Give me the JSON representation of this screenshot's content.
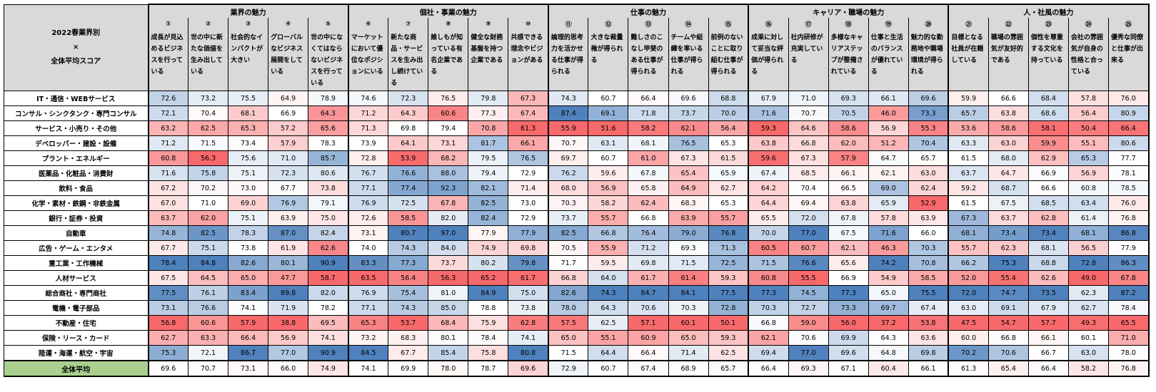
{
  "corner_title": "2022春業界別\n×\n全体平均スコア",
  "colors": {
    "header_bg": "#d9d9d9",
    "average_label_bg": "#a9d08e",
    "high_score": "#4f81bd",
    "mid_score": "#ffffff",
    "low_score": "#f8696b"
  },
  "chart_data": {
    "type": "heatmap",
    "groups": [
      {
        "name": "業界の魅力",
        "span": 5
      },
      {
        "name": "個社・事業の魅力",
        "span": 5
      },
      {
        "name": "仕事の魅力",
        "span": 5
      },
      {
        "name": "キャリア・職場の魅力",
        "span": 5
      },
      {
        "name": "人・社風の魅力",
        "span": 5
      }
    ],
    "column_numbers": [
      "①",
      "②",
      "③",
      "④",
      "⑤",
      "⑥",
      "⑦",
      "⑧",
      "⑨",
      "⑩",
      "⑪",
      "⑫",
      "⑬",
      "⑭",
      "⑮",
      "⑯",
      "⑰",
      "⑱",
      "⑲",
      "⑳",
      "㉑",
      "㉒",
      "㉓",
      "㉔",
      "㉕"
    ],
    "columns": [
      "成長が見込めるビジネスを行っている",
      "世の中に新たな価値を生み出している",
      "社会的なインパクトが大きい",
      "グローバルなビジネス展開をしている",
      "世の中になくてはならないビジネスを行っている",
      "マーケットにおいて優位なポジションにいる",
      "新たな商品・サービスを生み出し続けている",
      "誰しもが知っている有名企業である",
      "健全な財務基盤を持つ企業である",
      "共感できる理念やビジョンがある",
      "論理的思考力を活かせる仕事が得られる",
      "大きな裁量権が得られる",
      "難しさのこなし甲斐のある仕事が得られる",
      "チームや組織を率いる仕事が得られる",
      "前例のないことに取り組む仕事が得られる",
      "成果に対して妥当な評価が得られる",
      "社内研修が充実している",
      "多様なキャリアステップが整備されている",
      "仕事と生活のバランスが優れている",
      "魅力的な勤務地や職場環境が得られる",
      "目標となる社員が在籍している",
      "職場の雰囲気が友好的である",
      "個性を尊重する文化を持っている",
      "会社の雰囲気が自身の性格と合っている",
      "優秀な同僚と仕事が出来る"
    ],
    "rows": [
      {
        "label": "IT・通信・WEBサービス",
        "values": [
          72.6,
          73.2,
          75.5,
          64.9,
          78.9,
          74.6,
          72.3,
          76.5,
          79.8,
          67.3,
          74.3,
          60.7,
          66.4,
          69.6,
          68.8,
          67.9,
          71.0,
          69.3,
          66.1,
          69.6,
          59.9,
          66.6,
          68.4,
          57.8,
          76.0
        ]
      },
      {
        "label": "コンサル・シンクタンク・専門コンサル",
        "values": [
          72.1,
          70.4,
          68.1,
          66.9,
          64.3,
          71.2,
          64.3,
          60.6,
          77.3,
          67.4,
          87.4,
          69.1,
          71.8,
          73.7,
          70.0,
          71.6,
          70.7,
          70.5,
          46.0,
          73.3,
          65.7,
          63.8,
          68.6,
          56.4,
          80.9
        ]
      },
      {
        "label": "サービス・小売り・その他",
        "values": [
          63.2,
          62.5,
          65.3,
          57.2,
          65.6,
          71.3,
          69.8,
          79.4,
          70.8,
          61.3,
          55.9,
          51.6,
          58.2,
          62.1,
          56.4,
          59.3,
          64.6,
          58.6,
          56.9,
          55.3,
          53.6,
          58.6,
          58.1,
          50.4,
          66.4
        ]
      },
      {
        "label": "デベロッパー・建設・設備",
        "values": [
          71.2,
          71.5,
          73.4,
          57.9,
          78.3,
          73.9,
          64.1,
          73.1,
          81.7,
          66.1,
          70.7,
          63.1,
          68.1,
          76.5,
          65.3,
          63.8,
          66.8,
          62.0,
          51.2,
          70.4,
          63.3,
          63.0,
          59.9,
          55.1,
          80.6
        ]
      },
      {
        "label": "プラント・エネルギー",
        "values": [
          60.8,
          56.3,
          75.6,
          71.0,
          85.7,
          72.8,
          53.9,
          68.2,
          79.5,
          76.5,
          69.7,
          60.7,
          61.0,
          67.3,
          61.5,
          59.6,
          67.3,
          57.9,
          64.7,
          65.7,
          61.5,
          68.0,
          62.9,
          65.3,
          77.7
        ]
      },
      {
        "label": "医薬品・化粧品・消費財",
        "values": [
          71.6,
          75.8,
          75.1,
          72.3,
          80.6,
          76.7,
          76.6,
          88.0,
          79.4,
          72.9,
          76.2,
          59.6,
          67.8,
          65.4,
          65.9,
          67.4,
          68.5,
          66.1,
          62.1,
          63.0,
          63.7,
          64.7,
          66.9,
          56.9,
          78.1
        ]
      },
      {
        "label": "飲料・食品",
        "values": [
          67.2,
          70.2,
          73.0,
          67.7,
          73.8,
          77.1,
          77.4,
          92.3,
          82.1,
          71.4,
          68.0,
          56.9,
          65.8,
          64.9,
          62.7,
          64.2,
          70.4,
          66.5,
          69.0,
          62.4,
          59.2,
          68.7,
          66.6,
          60.8,
          78.5
        ]
      },
      {
        "label": "化学・素材・鉄鋼・非鉄金属",
        "values": [
          67.0,
          71.0,
          69.0,
          76.9,
          79.1,
          76.9,
          72.5,
          67.8,
          82.5,
          73.0,
          70.3,
          58.2,
          62.4,
          68.3,
          65.3,
          64.4,
          69.4,
          63.8,
          65.9,
          52.9,
          61.5,
          67.5,
          68.5,
          63.4,
          76.0
        ]
      },
      {
        "label": "銀行・証券・投資",
        "values": [
          63.7,
          62.0,
          75.1,
          63.9,
          75.0,
          72.6,
          58.5,
          82.0,
          82.4,
          72.9,
          73.7,
          55.7,
          66.8,
          63.9,
          55.7,
          65.5,
          72.0,
          67.8,
          57.8,
          63.9,
          67.3,
          63.7,
          62.8,
          61.4,
          76.8
        ]
      },
      {
        "label": "自動車",
        "values": [
          74.8,
          82.5,
          78.3,
          87.0,
          82.4,
          73.1,
          80.7,
          97.0,
          77.9,
          77.9,
          82.5,
          66.8,
          76.4,
          79.0,
          76.8,
          70.0,
          77.0,
          67.5,
          71.6,
          66.0,
          68.1,
          73.4,
          73.4,
          68.1,
          86.8
        ]
      },
      {
        "label": "広告・ゲーム・エンタメ",
        "values": [
          67.7,
          75.1,
          73.8,
          61.9,
          62.6,
          74.0,
          74.3,
          84.0,
          74.9,
          69.8,
          70.5,
          55.9,
          71.2,
          69.3,
          71.3,
          60.5,
          60.7,
          62.1,
          46.3,
          70.3,
          55.7,
          62.3,
          68.1,
          56.5,
          77.9
        ]
      },
      {
        "label": "重工業・工作機械",
        "values": [
          78.4,
          84.8,
          82.6,
          80.1,
          90.9,
          83.3,
          77.3,
          73.7,
          80.2,
          79.8,
          71.7,
          59.5,
          69.8,
          71.5,
          72.5,
          71.5,
          76.6,
          65.6,
          74.2,
          70.8,
          66.2,
          75.3,
          68.8,
          72.8,
          86.3
        ]
      },
      {
        "label": "人材サービス",
        "values": [
          67.5,
          64.5,
          65.0,
          47.7,
          58.7,
          63.5,
          56.4,
          56.3,
          65.2,
          61.7,
          66.8,
          64.0,
          61.7,
          61.4,
          59.3,
          60.8,
          55.5,
          66.9,
          54.9,
          58.5,
          52.0,
          55.4,
          62.6,
          49.0,
          67.8
        ]
      },
      {
        "label": "総合商社・専門商社",
        "values": [
          77.5,
          76.1,
          83.4,
          89.8,
          82.0,
          76.9,
          75.4,
          81.0,
          84.9,
          75.0,
          82.6,
          74.3,
          84.7,
          84.1,
          77.5,
          77.3,
          74.5,
          77.3,
          65.0,
          75.5,
          72.0,
          74.7,
          73.5,
          62.3,
          87.2
        ]
      },
      {
        "label": "電機・電子部品",
        "values": [
          73.1,
          76.6,
          74.1,
          71.9,
          78.2,
          77.1,
          74.3,
          85.0,
          78.8,
          73.8,
          78.0,
          64.3,
          70.6,
          70.3,
          72.8,
          70.3,
          72.7,
          73.3,
          69.7,
          67.4,
          63.0,
          69.1,
          67.9,
          62.7,
          78.4
        ]
      },
      {
        "label": "不動産・住宅",
        "values": [
          56.8,
          60.6,
          57.9,
          38.8,
          69.5,
          65.3,
          53.7,
          68.4,
          75.9,
          62.8,
          57.5,
          62.5,
          57.1,
          60.1,
          50.1,
          66.8,
          59.0,
          56.0,
          37.2,
          53.8,
          47.5,
          54.7,
          57.7,
          49.3,
          65.5
        ]
      },
      {
        "label": "保険・リース・カード",
        "values": [
          62.7,
          63.3,
          66.4,
          56.9,
          74.1,
          73.2,
          68.3,
          80.1,
          78.4,
          74.1,
          65.0,
          55.1,
          60.9,
          65.0,
          59.3,
          62.1,
          70.6,
          69.9,
          64.3,
          63.6,
          60.0,
          66.8,
          66.1,
          60.1,
          71.0
        ]
      },
      {
        "label": "陸運・海運・航空・宇宙",
        "values": [
          75.3,
          72.1,
          86.7,
          77.0,
          90.9,
          84.5,
          67.7,
          85.4,
          75.8,
          80.8,
          71.5,
          64.4,
          66.4,
          71.4,
          62.5,
          69.4,
          77.0,
          69.6,
          64.8,
          69.8,
          70.2,
          70.6,
          66.7,
          63.0,
          78.0
        ]
      }
    ],
    "average": {
      "label": "全体平均",
      "values": [
        69.6,
        70.7,
        73.1,
        66.0,
        74.9,
        74.1,
        69.9,
        78.0,
        78.7,
        69.6,
        72.9,
        60.7,
        67.4,
        68.9,
        65.7,
        66.4,
        69.3,
        67.1,
        60.4,
        66.1,
        61.3,
        65.4,
        66.4,
        58.2,
        76.8
      ]
    }
  }
}
